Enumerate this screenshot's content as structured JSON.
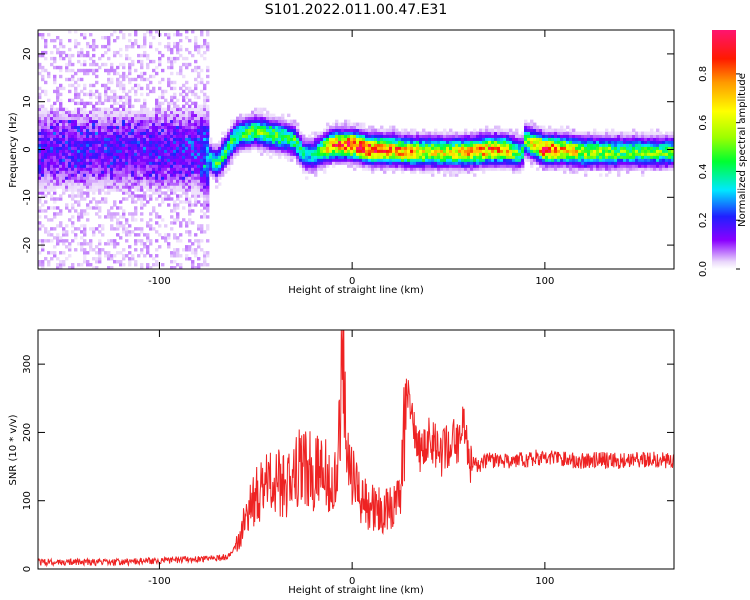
{
  "figure": {
    "title": "S101.2022.011.00.47.E31"
  },
  "chart_data": [
    {
      "type": "heatmap",
      "title": "S101.2022.011.00.47.E31",
      "xlabel": "Height of straight line (km)",
      "ylabel": "Frequency (Hz)",
      "xlim": [
        -163,
        167
      ],
      "ylim": [
        -25,
        25
      ],
      "xticks": [
        -100,
        0,
        100
      ],
      "yticks": [
        -20,
        -10,
        0,
        10,
        20
      ],
      "colorbar": {
        "label": "Normalized spectral amplitude",
        "range": [
          0,
          0.98
        ],
        "ticks": [
          0.0,
          0.2,
          0.4,
          0.6,
          0.8
        ],
        "colormap": "rainbow (white-violet-blue-cyan-green-yellow-orange-red-pink)"
      },
      "ridge": {
        "description": "spectral energy concentrated near 0 Hz",
        "x": [
          -163,
          -120,
          -80,
          -70,
          -60,
          -50,
          -40,
          -30,
          -25,
          -20,
          -15,
          -10,
          -5,
          0,
          10,
          20,
          30,
          40,
          50,
          60,
          70,
          80,
          88,
          90,
          100,
          110,
          120,
          140,
          167
        ],
        "frequency": [
          0,
          0,
          0,
          -3,
          3,
          4,
          3,
          2,
          -1,
          -1,
          0,
          1,
          1,
          1,
          0,
          0,
          -0.5,
          -0.5,
          -0.5,
          -0.5,
          0,
          0,
          -1,
          2,
          0,
          0,
          -0.5,
          -0.5,
          -0.5
        ],
        "amplitude": [
          0.12,
          0.12,
          0.14,
          0.45,
          0.45,
          0.5,
          0.5,
          0.45,
          0.35,
          0.35,
          0.6,
          0.8,
          0.85,
          0.95,
          0.9,
          0.8,
          0.75,
          0.65,
          0.65,
          0.7,
          0.8,
          0.7,
          0.4,
          0.5,
          0.95,
          0.7,
          0.6,
          0.5,
          0.5
        ]
      }
    },
    {
      "type": "line",
      "title": "",
      "xlabel": "Height of straight line (km)",
      "ylabel": "SNR (10 * v/v)",
      "xlim": [
        -163,
        167
      ],
      "ylim": [
        0,
        350
      ],
      "xticks": [
        -100,
        0,
        100
      ],
      "yticks": [
        0,
        100,
        200,
        300
      ],
      "series": [
        {
          "color": "#ee2222",
          "x": [
            -163,
            -140,
            -120,
            -100,
            -80,
            -72,
            -65,
            -60,
            -55,
            -50,
            -45,
            -40,
            -35,
            -30,
            -25,
            -20,
            -15,
            -10,
            -7,
            -5,
            -3,
            0,
            5,
            10,
            15,
            20,
            25,
            28,
            30,
            35,
            40,
            45,
            50,
            55,
            58,
            60,
            65,
            70,
            80,
            90,
            100,
            110,
            120,
            130,
            140,
            150,
            160,
            167
          ],
          "y": [
            10,
            10,
            10,
            12,
            15,
            15,
            18,
            35,
            75,
            110,
            120,
            130,
            120,
            135,
            160,
            140,
            150,
            130,
            180,
            320,
            170,
            130,
            105,
            90,
            85,
            90,
            100,
            250,
            240,
            170,
            200,
            165,
            180,
            190,
            220,
            160,
            150,
            160,
            158,
            160,
            165,
            160,
            158,
            160,
            158,
            160,
            160,
            158
          ]
        }
      ]
    }
  ]
}
